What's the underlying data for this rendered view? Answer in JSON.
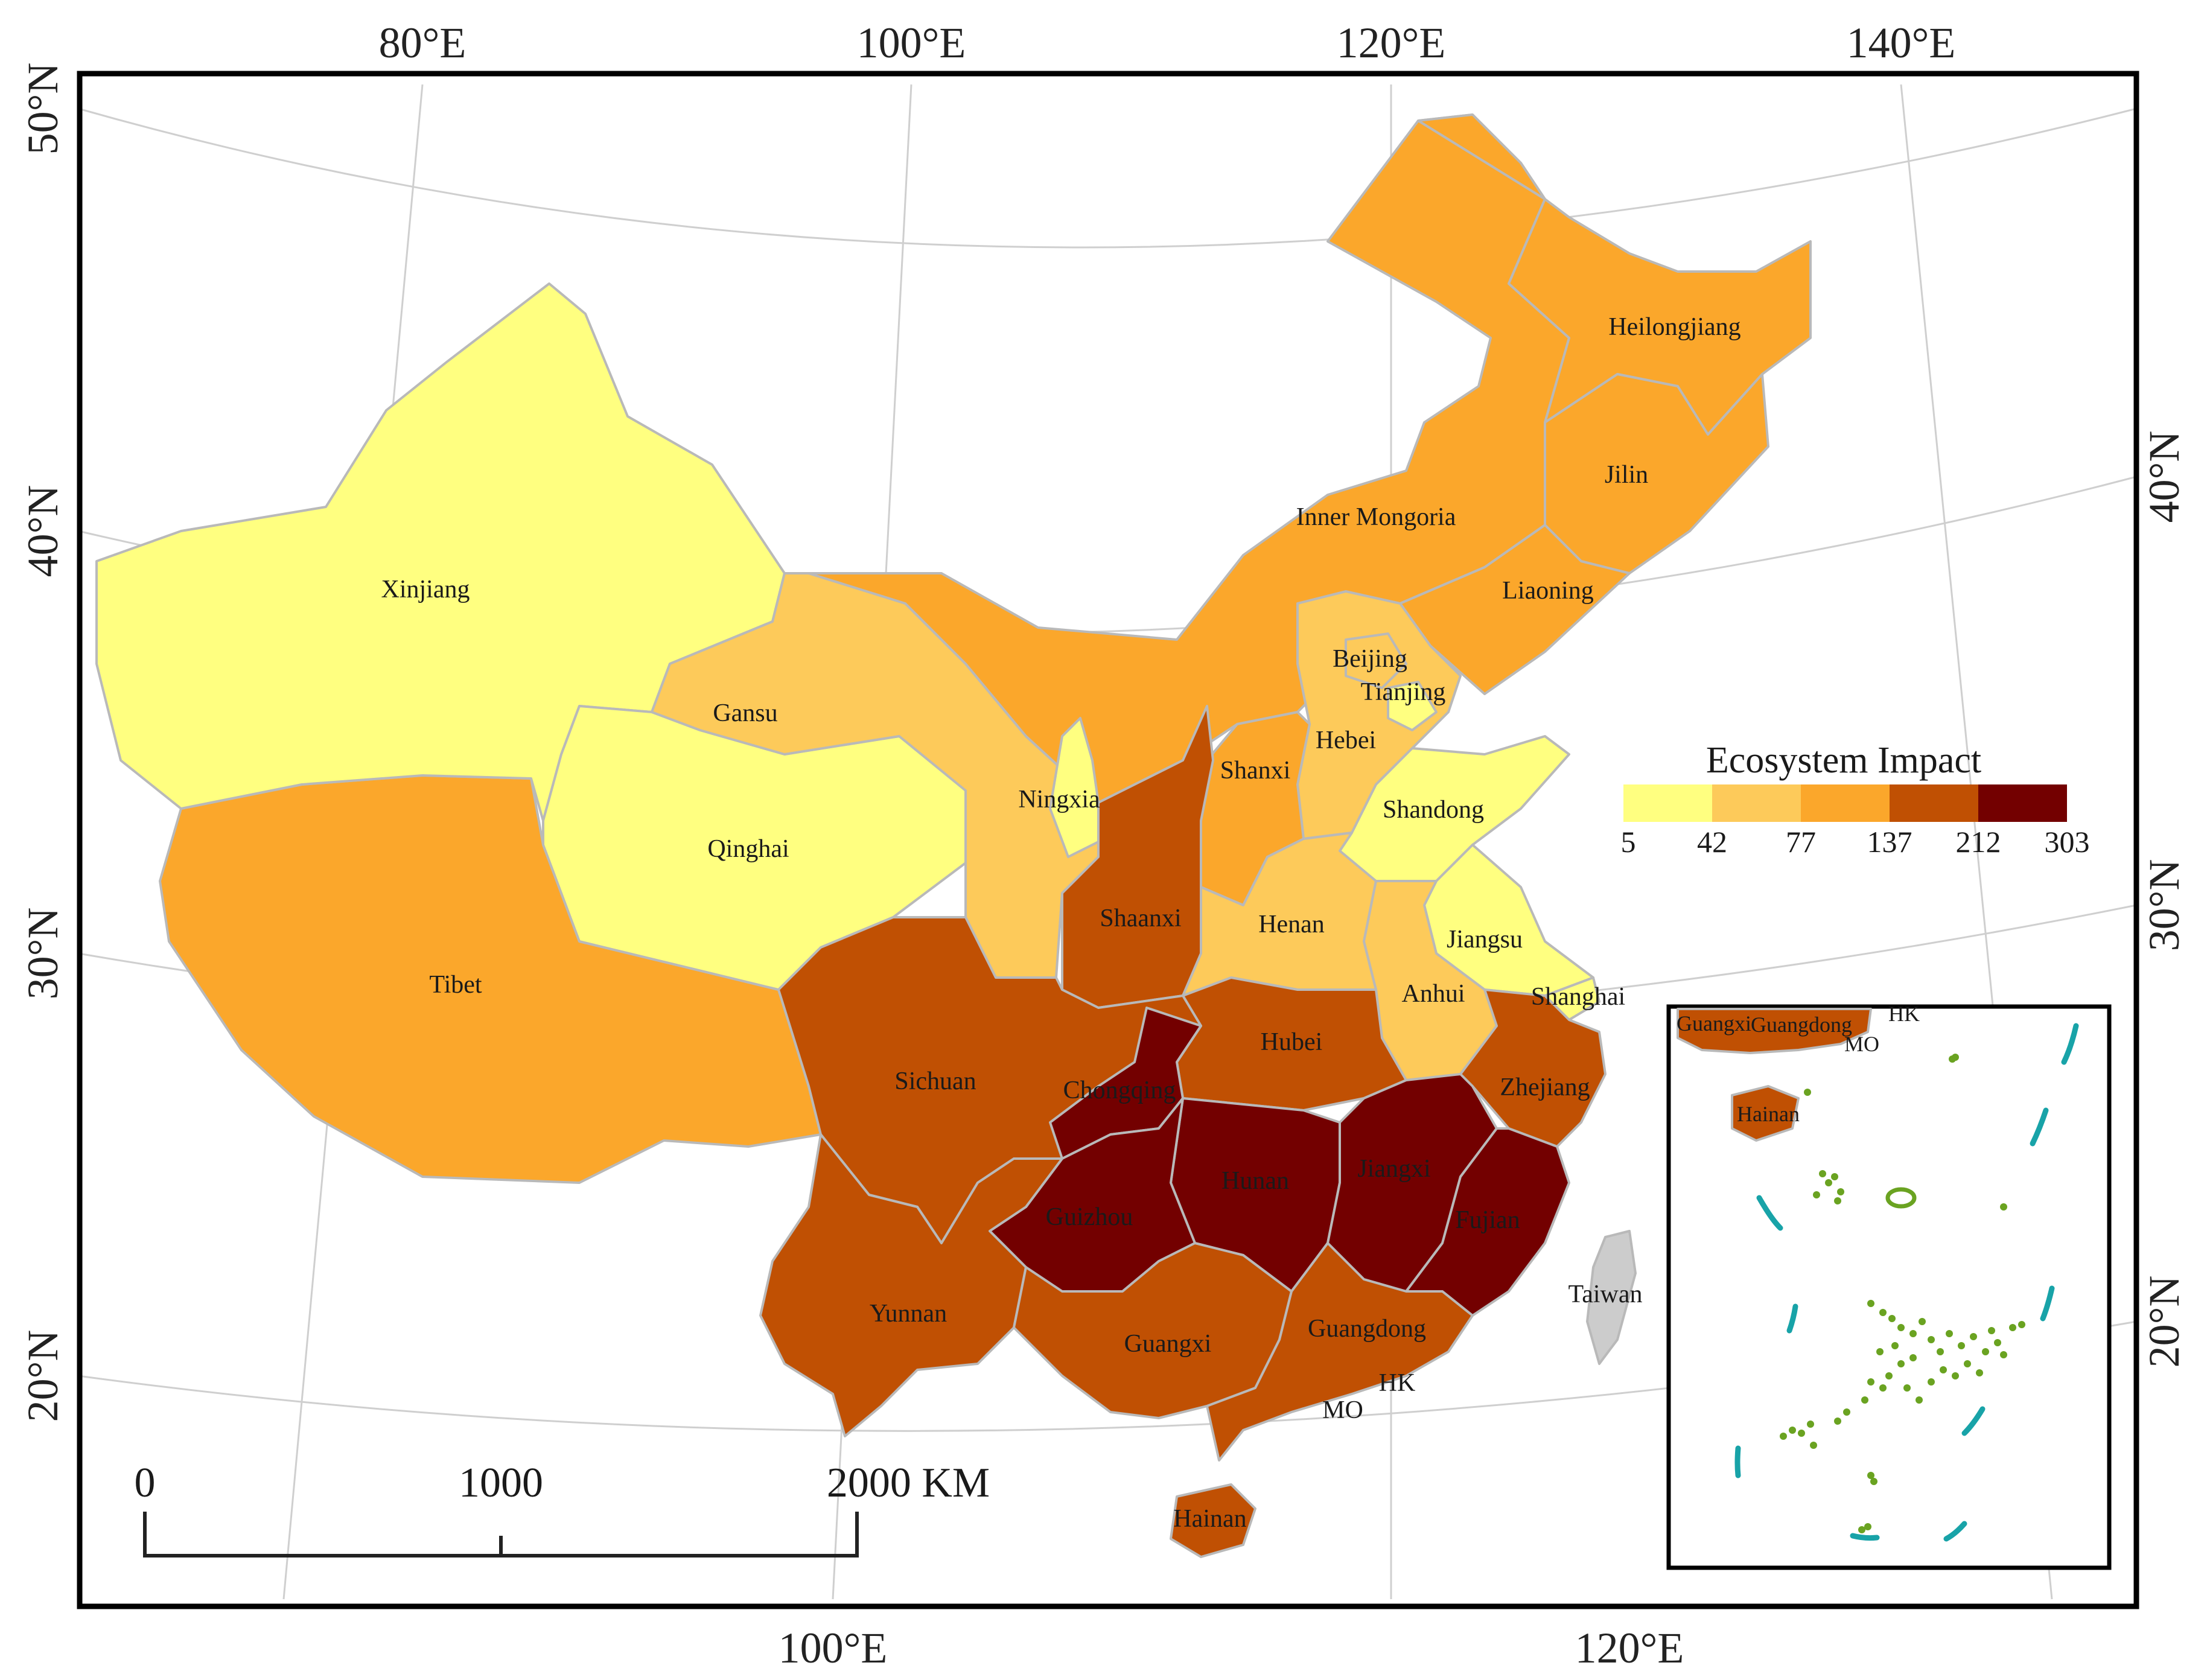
{
  "colors": {
    "class1": "#ffff80",
    "class2": "#fdca5a",
    "class3": "#fba72b",
    "class4": "#c05003",
    "class5": "#730000",
    "taiwan": "#cccccc",
    "islands": "#6aa321",
    "dashline": "#18a3a8"
  },
  "graticule": {
    "top": [
      "80°E",
      "100°E",
      "120°E",
      "140°E"
    ],
    "bottom": [
      "100°E",
      "120°E"
    ],
    "left": [
      "50°N",
      "40°N",
      "30°N",
      "20°N"
    ],
    "right": [
      "40°N",
      "30°N",
      "20°N"
    ]
  },
  "legend": {
    "title": "Ecosystem Impact",
    "breaks": [
      "5",
      "42",
      "77",
      "137",
      "212",
      "303"
    ]
  },
  "scale": {
    "labels": [
      "0",
      "1000",
      "2000 KM"
    ]
  },
  "provinces": {
    "xinjiang": {
      "name": "Xinjiang",
      "class": 1
    },
    "tibet": {
      "name": "Tibet",
      "class": 3
    },
    "qinghai": {
      "name": "Qinghai",
      "class": 1
    },
    "gansu": {
      "name": "Gansu",
      "class": 2
    },
    "inner_mongolia": {
      "name": "Inner Mongoria",
      "class": 3
    },
    "heilongjiang": {
      "name": "Heilongjiang",
      "class": 3
    },
    "jilin": {
      "name": "Jilin",
      "class": 3
    },
    "liaoning": {
      "name": "Liaoning",
      "class": 3
    },
    "beijing": {
      "name": "Beijing",
      "class": 2
    },
    "tianjing": {
      "name": "Tianjing",
      "class": 1
    },
    "hebei": {
      "name": "Hebei",
      "class": 2
    },
    "shanxi": {
      "name": "Shanxi",
      "class": 3
    },
    "shandong": {
      "name": "Shandong",
      "class": 1
    },
    "ningxia": {
      "name": "Ningxia",
      "class": 1
    },
    "shaanxi": {
      "name": "Shaanxi",
      "class": 4
    },
    "henan": {
      "name": "Henan",
      "class": 2
    },
    "jiangsu": {
      "name": "Jiangsu",
      "class": 1
    },
    "anhui": {
      "name": "Anhui",
      "class": 2
    },
    "shanghai": {
      "name": "Shanghai",
      "class": 1
    },
    "hubei": {
      "name": "Hubei",
      "class": 4
    },
    "sichuan": {
      "name": "Sichuan",
      "class": 4
    },
    "chongqing": {
      "name": "Chongqing",
      "class": 5
    },
    "zhejiang": {
      "name": "Zhejiang",
      "class": 4
    },
    "hunan": {
      "name": "Hunan",
      "class": 5
    },
    "jiangxi": {
      "name": "Jiangxi",
      "class": 5
    },
    "guizhou": {
      "name": "Guizhou",
      "class": 5
    },
    "fujian": {
      "name": "Fujian",
      "class": 5
    },
    "yunnan": {
      "name": "Yunnan",
      "class": 4
    },
    "guangxi": {
      "name": "Guangxi",
      "class": 4
    },
    "guangdong": {
      "name": "Guangdong",
      "class": 4
    },
    "hainan": {
      "name": "Hainan",
      "class": 4
    },
    "taiwan": {
      "name": "Taiwan",
      "class": 0
    },
    "hk": {
      "name": "HK"
    },
    "mo": {
      "name": "MO"
    }
  },
  "inset": {
    "guangxi": "Guangxi",
    "guangdong": "Guangdong",
    "hk": "HK",
    "mo": "MO",
    "hainan": "Hainan"
  }
}
